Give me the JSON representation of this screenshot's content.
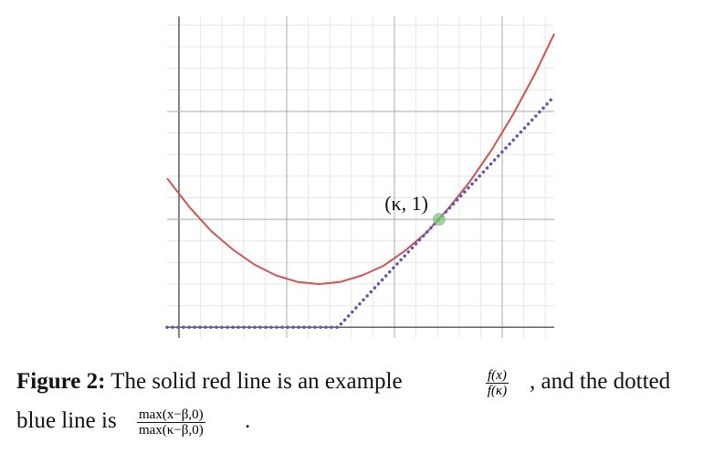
{
  "chart_data": {
    "type": "line",
    "xlim": [
      -0.11,
      3.483
    ],
    "ylim": [
      -0.1,
      2.88
    ],
    "xticks": [
      0,
      1,
      2,
      3
    ],
    "yticks": [
      0,
      1,
      2
    ],
    "grid": true,
    "series": [
      {
        "name": "f(x)/f(κ)",
        "color": "#d0534f",
        "style": "solid",
        "x": [
          -0.11,
          0.1,
          0.3,
          0.5,
          0.7,
          0.9,
          1.1,
          1.3,
          1.5,
          1.7,
          1.9,
          2.1,
          2.3,
          2.5,
          2.7,
          2.9,
          3.1,
          3.3,
          3.483
        ],
        "values": [
          1.38,
          1.11,
          0.89,
          0.72,
          0.58,
          0.48,
          0.42,
          0.4,
          0.42,
          0.48,
          0.57,
          0.71,
          0.88,
          1.1,
          1.35,
          1.64,
          1.97,
          2.34,
          2.72
        ]
      },
      {
        "name": "max(x−β,0)/max(κ−β,0)",
        "color": "#6650b8",
        "style": "dotted",
        "x": [
          -0.11,
          1.475,
          3.483
        ],
        "values": [
          0,
          0,
          2.14
        ]
      }
    ],
    "annotations": [
      {
        "text": "(κ, 1)",
        "x": 2.415,
        "y": 1,
        "color": "#7cc47c"
      }
    ]
  },
  "caption": {
    "label": "Figure 2:",
    "text1": "The solid red line is an example",
    "frac1_num": "f(x)",
    "frac1_den": "f(κ)",
    "text2": ", and the dotted",
    "text3": "blue line is",
    "frac2_num": "max(x−β,0)",
    "frac2_den": "max(κ−β,0)",
    "text4": "."
  }
}
